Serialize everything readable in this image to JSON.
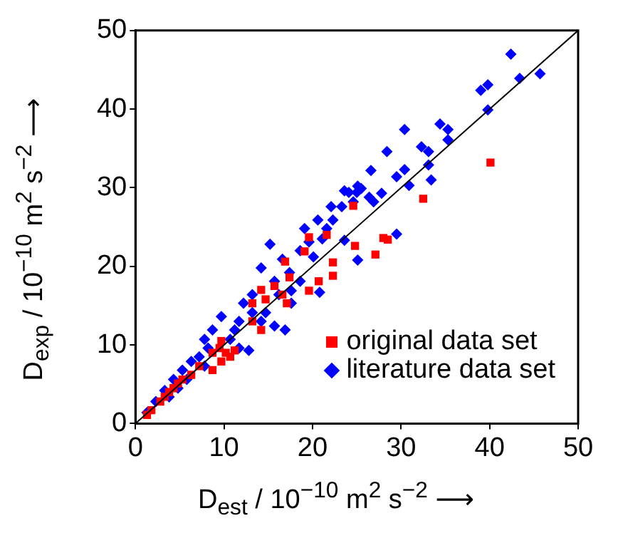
{
  "chart_data": {
    "type": "scatter",
    "xlabel": "D$_{est}$ / 10$^{−10}$ m$^{2}$ s$^{−2}$  ⟶",
    "ylabel": "D$_{exp}$ / 10$^{−10}$ m$^{2}$ s$^{−2}$  ⟶",
    "xlim": [
      0,
      50
    ],
    "ylim": [
      0,
      50
    ],
    "xticks": [
      0,
      10,
      20,
      30,
      40,
      50
    ],
    "yticks": [
      0,
      10,
      20,
      30,
      40,
      50
    ],
    "grid": false,
    "legend": "bottom right",
    "series": [
      {
        "type": "line",
        "color": "#000000",
        "marker": "none",
        "x": [
          0,
          50
        ],
        "values": [
          0,
          50
        ]
      },
      {
        "name": "literature data set",
        "color": "#0000ff",
        "marker": "diamond",
        "x": [
          42.4,
          43.4,
          45.7,
          39.0,
          39.8,
          39.8,
          35.3,
          35.3,
          34.4,
          33.1,
          32.3,
          30.4,
          28.4,
          33.1,
          33.4,
          30.4,
          29.5,
          30.9,
          26.6,
          25.1,
          25.5,
          25.0,
          26.4,
          23.6,
          24.1,
          24.6,
          23.3,
          27.8,
          26.9,
          29.5,
          25.1,
          23.6,
          22.1,
          22.3,
          21.6,
          20.6,
          21.1,
          19.1,
          19.6,
          18.6,
          20.1,
          15.2,
          14.2,
          16.6,
          17.4,
          15.7,
          16.2,
          13.2,
          12.2,
          13.2,
          11.7,
          11.2,
          9.7,
          8.7,
          7.8,
          8.2,
          15.7,
          16.9,
          12.8,
          20.8,
          6.3,
          5.3,
          4.3,
          3.3,
          2.3,
          1.3,
          4.8,
          5.8,
          3.8,
          7.2,
          7.8,
          10.7,
          11.7,
          14.2,
          14.7,
          17.6,
          18.6,
          17.6
        ],
        "values": [
          47.0,
          43.9,
          44.5,
          42.4,
          43.1,
          39.9,
          36.1,
          37.4,
          38.1,
          34.6,
          35.2,
          37.4,
          34.6,
          32.9,
          31.0,
          32.3,
          31.4,
          30.3,
          32.2,
          30.2,
          29.9,
          29.4,
          28.8,
          29.6,
          29.4,
          28.2,
          27.6,
          29.3,
          28.2,
          24.1,
          20.8,
          23.3,
          27.6,
          25.9,
          24.8,
          25.9,
          23.5,
          24.8,
          23.1,
          22.0,
          21.2,
          22.8,
          19.8,
          20.9,
          19.2,
          18.1,
          16.4,
          16.4,
          15.3,
          14.1,
          13.0,
          11.9,
          13.6,
          11.9,
          10.7,
          9.6,
          12.4,
          11.9,
          9.3,
          16.7,
          7.9,
          6.8,
          5.6,
          4.2,
          2.8,
          1.4,
          4.5,
          5.6,
          3.4,
          8.5,
          7.3,
          10.7,
          9.6,
          13.0,
          14.1,
          15.3,
          18.1,
          16.9
        ]
      },
      {
        "name": "original data set",
        "color": "#ff0000",
        "marker": "square",
        "x": [
          40.1,
          32.5,
          24.6,
          24.8,
          27.1,
          28.0,
          28.5,
          22.3,
          22.3,
          21.6,
          20.7,
          19.1,
          19.6,
          19.6,
          16.9,
          17.4,
          15.7,
          16.6,
          17.1,
          14.2,
          13.2,
          14.7,
          14.2,
          13.2,
          10.7,
          9.7,
          8.7,
          11.2,
          10.2,
          9.7,
          9.5,
          7.2,
          6.3,
          4.8,
          3.8,
          2.8,
          1.8,
          1.3,
          4.3,
          5.3,
          3.3,
          8.7
        ],
        "values": [
          33.2,
          28.6,
          27.7,
          22.6,
          21.5,
          23.6,
          23.4,
          20.5,
          18.8,
          24.0,
          18.1,
          21.9,
          23.7,
          16.9,
          20.6,
          18.6,
          17.5,
          16.4,
          15.3,
          17.0,
          15.3,
          15.8,
          11.9,
          13.0,
          8.5,
          7.9,
          6.8,
          9.3,
          9.0,
          10.5,
          9.6,
          7.3,
          6.2,
          5.1,
          4.0,
          2.8,
          1.7,
          1.1,
          4.5,
          5.6,
          3.4,
          9.0
        ]
      }
    ]
  }
}
